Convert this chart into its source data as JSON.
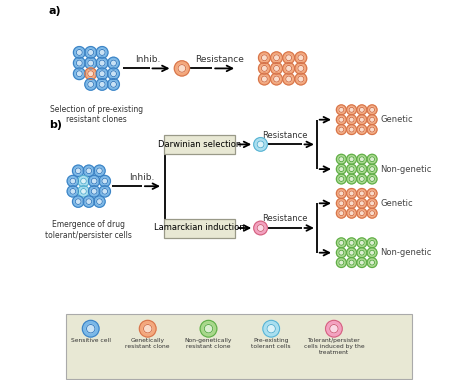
{
  "cell_colors": {
    "sensitive": {
      "fill": "#7ab8e8",
      "edge": "#3a7fc1"
    },
    "genetic": {
      "fill": "#f4a87c",
      "edge": "#d4724a"
    },
    "nongenetic": {
      "fill": "#a8d88a",
      "edge": "#5aaa45"
    },
    "preexisting": {
      "fill": "#a8dff0",
      "edge": "#55b0d0"
    },
    "tolerant": {
      "fill": "#f4a0c0",
      "edge": "#d0607a"
    }
  },
  "label_a": "a)",
  "label_b": "b)",
  "text_a": "Selection of pre-existing\nresistant clones",
  "text_b": "Emergence of drug\ntolerant/persister cells",
  "inhib_label": "Inhib.",
  "resistance_label": "Resistance",
  "darwinian_label": "Darwinian selection",
  "lamarckian_label": "Lamarckian induction",
  "genetic_label": "Genetic",
  "nongenetic_label": "Non-genetic",
  "legend_labels": [
    "Sensitive cell",
    "Genetically\nresistant clone",
    "Non-genetically\nresistant clone",
    "Pre-existing\ntolerant cells",
    "Tolerant/persister\ncells induced by the\ntreatment"
  ],
  "legend_bg": "#e8e8d4",
  "box_bg": "#e8e8d4",
  "box_edge": "#999988"
}
